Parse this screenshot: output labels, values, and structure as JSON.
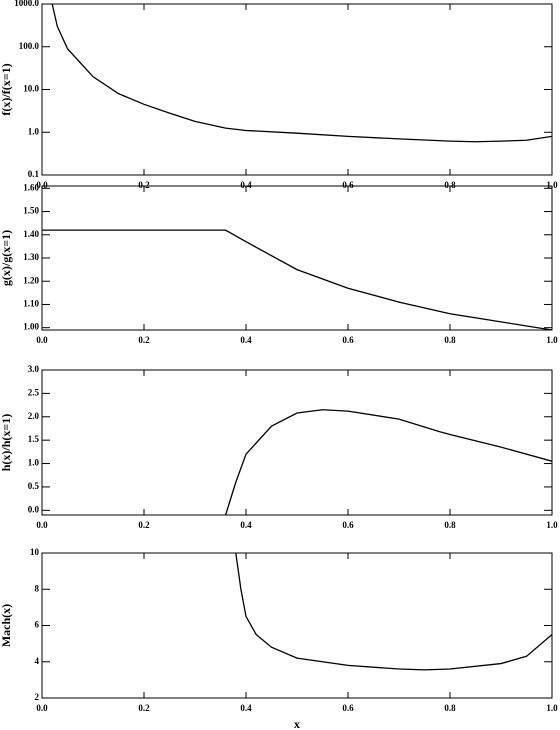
{
  "chart_data": [
    {
      "type": "line",
      "ylabel": "f(x)/f(x=1)",
      "log_y": true,
      "x": [
        0.02,
        0.03,
        0.05,
        0.1,
        0.15,
        0.2,
        0.25,
        0.3,
        0.36,
        0.4,
        0.5,
        0.6,
        0.7,
        0.8,
        0.85,
        0.9,
        0.95,
        1.0
      ],
      "values": [
        1000,
        300,
        90,
        20,
        8,
        4.5,
        2.8,
        1.8,
        1.25,
        1.1,
        0.95,
        0.8,
        0.7,
        0.62,
        0.6,
        0.62,
        0.65,
        0.8
      ],
      "color": "#000000",
      "xlim": [
        0,
        1
      ],
      "xticks": [
        {
          "value": 0,
          "label": "0.0"
        },
        0.2,
        0.4,
        0.6,
        0.8,
        {
          "value": 1,
          "label": "1.0"
        }
      ],
      "ylim": [
        0.1,
        1000
      ],
      "yticks": [
        0.1,
        {
          "value": 1,
          "label": "1.0"
        },
        {
          "value": 10,
          "label": "10.0"
        },
        {
          "value": 100,
          "label": "100.0"
        },
        {
          "value": 1000,
          "label": "1000.0"
        }
      ]
    },
    {
      "type": "line",
      "ylabel": "g(x)/g(x=1)",
      "x": [
        0.0,
        0.36,
        0.4,
        0.5,
        0.6,
        0.7,
        0.8,
        0.9,
        1.0
      ],
      "values": [
        1.42,
        1.42,
        1.37,
        1.25,
        1.17,
        1.11,
        1.06,
        1.025,
        0.99
      ],
      "color": "#000000",
      "xlim": [
        0,
        1
      ],
      "xticks": [
        {
          "value": 0,
          "label": "0.0"
        },
        0.2,
        0.4,
        0.6,
        0.8,
        {
          "value": 1,
          "label": "1.0"
        }
      ],
      "ylim": [
        0.99,
        1.61
      ],
      "yticks": [
        {
          "value": 1,
          "label": "1.00"
        },
        {
          "value": 1.1,
          "label": "1.10"
        },
        {
          "value": 1.2,
          "label": "1.20"
        },
        {
          "value": 1.3,
          "label": "1.30"
        },
        {
          "value": 1.4,
          "label": "1.40"
        },
        {
          "value": 1.5,
          "label": "1.50"
        },
        {
          "value": 1.6,
          "label": "1.60"
        }
      ]
    },
    {
      "type": "line",
      "ylabel": "h(x)/h(x=1)",
      "x": [
        0.36,
        0.38,
        0.4,
        0.45,
        0.5,
        0.55,
        0.6,
        0.7,
        0.78,
        0.8,
        0.9,
        1.0
      ],
      "values": [
        -0.1,
        0.6,
        1.2,
        1.8,
        2.08,
        2.15,
        2.12,
        1.95,
        1.68,
        1.62,
        1.35,
        1.05
      ],
      "color": "#000000",
      "xlim": [
        0,
        1
      ],
      "xticks": [
        {
          "value": 0,
          "label": "0.0"
        },
        0.2,
        0.4,
        0.6,
        0.8,
        {
          "value": 1,
          "label": "1.0"
        }
      ],
      "ylim": [
        -0.1,
        3.0
      ],
      "yticks": [
        {
          "value": 0,
          "label": "0.0"
        },
        0.5,
        {
          "value": 1,
          "label": "1.0"
        },
        1.5,
        {
          "value": 2,
          "label": "2.0"
        },
        2.5,
        {
          "value": 3,
          "label": "3.0"
        }
      ]
    },
    {
      "type": "line",
      "ylabel": "Mach(x)",
      "xlabel": "x",
      "x": [
        0.38,
        0.39,
        0.4,
        0.42,
        0.45,
        0.5,
        0.6,
        0.7,
        0.75,
        0.8,
        0.9,
        0.95,
        1.0
      ],
      "values": [
        10,
        8,
        6.5,
        5.5,
        4.8,
        4.2,
        3.8,
        3.6,
        3.55,
        3.6,
        3.9,
        4.3,
        5.5
      ],
      "color": "#000000",
      "xlim": [
        0,
        1
      ],
      "xticks": [
        {
          "value": 0,
          "label": "0.0"
        },
        0.2,
        0.4,
        0.6,
        0.8,
        {
          "value": 1,
          "label": "1.0"
        }
      ],
      "ylim": [
        2,
        10
      ],
      "yticks": [
        2,
        4,
        6,
        8,
        10
      ]
    }
  ]
}
